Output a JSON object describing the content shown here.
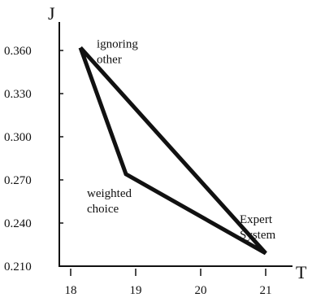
{
  "chart_data": {
    "type": "line",
    "title": "",
    "xlabel": "T",
    "ylabel": "J",
    "xlim": [
      18,
      21.3
    ],
    "ylim": [
      0.21,
      0.375
    ],
    "x_ticks": [
      18,
      19,
      20,
      21
    ],
    "x_tick_labels": [
      "18",
      "19",
      "20",
      "21"
    ],
    "y_ticks": [
      0.21,
      0.24,
      0.27,
      0.3,
      0.33,
      0.36
    ],
    "y_tick_labels": [
      "0.210",
      "0.240",
      "0.270",
      "0.300",
      "0.330",
      "0.360"
    ],
    "grid": false,
    "series": [
      {
        "closed": true,
        "color": "#111111",
        "points": [
          {
            "x": 18.15,
            "y": 0.362
          },
          {
            "x": 18.85,
            "y": 0.274
          },
          {
            "x": 21.0,
            "y": 0.219
          },
          {
            "x": 18.15,
            "y": 0.362
          }
        ]
      }
    ],
    "annotations": [
      {
        "lines": [
          "ignoring",
          "other"
        ],
        "x": 18.4,
        "y": 0.362
      },
      {
        "lines": [
          "weighted",
          "choice"
        ],
        "x": 18.25,
        "y": 0.258
      },
      {
        "lines": [
          "Expert",
          "System"
        ],
        "x": 20.6,
        "y": 0.24
      }
    ]
  }
}
